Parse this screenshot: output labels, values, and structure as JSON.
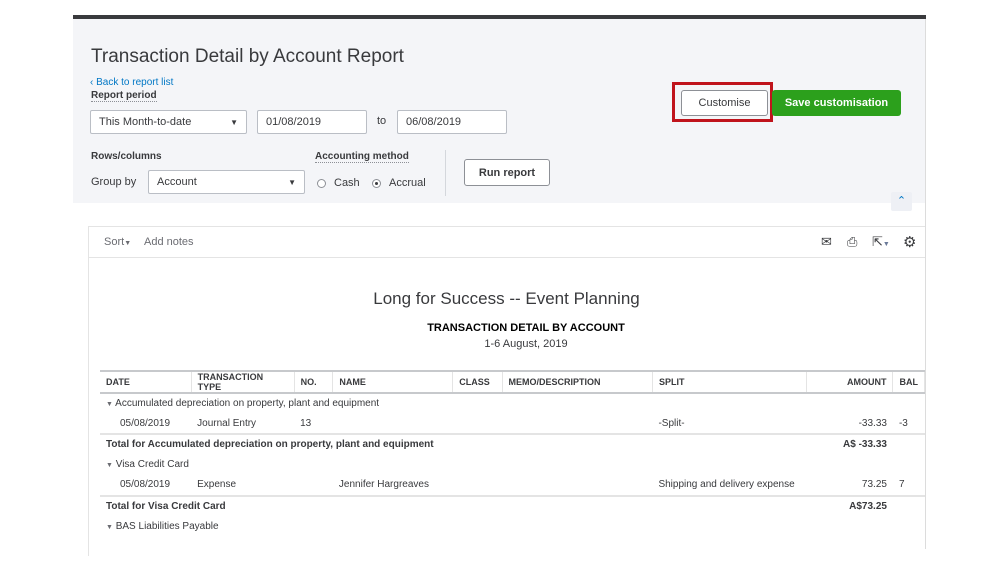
{
  "header": {
    "title": "Transaction Detail by Account Report",
    "back_link": "Back to report list",
    "report_period_label": "Report period",
    "period_value": "This Month-to-date",
    "date_from": "01/08/2019",
    "to_label": "to",
    "date_to": "06/08/2019",
    "rows_columns_label": "Rows/columns",
    "group_by_label": "Group by",
    "group_by_value": "Account",
    "accounting_method_label": "Accounting method",
    "method_options": [
      "Cash",
      "Accrual"
    ],
    "method_selected": "Accrual",
    "run_report": "Run report",
    "customise": "Customise",
    "save_customisation": "Save customisation"
  },
  "colors": {
    "accent_green": "#2ca01c",
    "highlight_red": "#c0141c",
    "link_blue": "#0077c5"
  },
  "toolbar": {
    "sort": "Sort",
    "add_notes": "Add notes",
    "icons": [
      "mail-icon",
      "print-icon",
      "export-icon",
      "gear-icon"
    ]
  },
  "report": {
    "company": "Long for Success -- Event Planning",
    "title": "TRANSACTION DETAIL BY ACCOUNT",
    "period": "1-6 August, 2019",
    "columns": [
      "DATE",
      "TRANSACTION TYPE",
      "NO.",
      "NAME",
      "CLASS",
      "MEMO/DESCRIPTION",
      "SPLIT",
      "AMOUNT",
      "BAL"
    ],
    "rows": [
      {
        "type": "group",
        "label": "Accumulated depreciation on property, plant and equipment"
      },
      {
        "type": "data",
        "cells": [
          "05/08/2019",
          "Journal Entry",
          "13",
          "",
          "",
          "",
          "-Split-",
          "-33.33",
          "-3"
        ]
      },
      {
        "type": "total",
        "label": "Total for Accumulated depreciation on property, plant and equipment",
        "amount": "A$ -33.33"
      },
      {
        "type": "group",
        "label": "Visa Credit Card"
      },
      {
        "type": "data",
        "cells": [
          "05/08/2019",
          "Expense",
          "",
          "Jennifer Hargreaves",
          "",
          "",
          "Shipping and delivery expense",
          "73.25",
          "7"
        ]
      },
      {
        "type": "total",
        "label": "Total for Visa Credit Card",
        "amount": "A$73.25"
      },
      {
        "type": "group",
        "label": "BAS Liabilities Payable"
      }
    ]
  }
}
